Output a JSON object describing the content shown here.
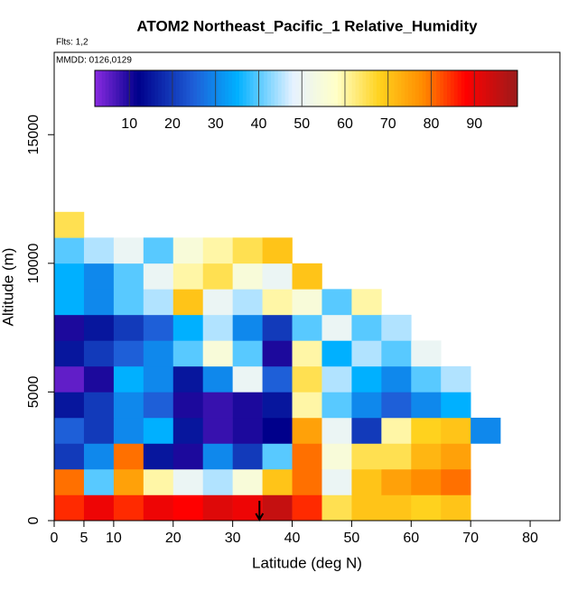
{
  "chart_data": {
    "type": "heatmap",
    "title": "ATOM2 Northeast_Pacific_1 Relative_Humidity",
    "annotations": [
      "Flts: 1,2",
      "MMDD: 0126,0129"
    ],
    "x_label": "Latitude (deg N)",
    "y_label": "Altitude (m)",
    "xlim": [
      0,
      85
    ],
    "xticks": [
      0,
      5,
      10,
      20,
      30,
      40,
      50,
      60,
      70,
      80
    ],
    "ylim": [
      0,
      18200
    ],
    "yticks": [
      0,
      5000,
      10000,
      15000
    ],
    "x_bins": [
      0,
      5,
      10,
      15,
      20,
      25,
      30,
      35,
      40,
      45,
      50,
      55,
      60,
      65,
      70,
      75
    ],
    "y_bins": [
      0,
      1000,
      2000,
      3000,
      4000,
      5000,
      6000,
      7000,
      8000,
      9000,
      10000,
      11000,
      12000
    ],
    "values": [
      [
        85,
        90,
        85,
        90,
        88,
        92,
        90,
        95,
        85,
        65,
        70,
        70,
        68,
        70,
        null
      ],
      [
        80,
        40,
        75,
        60,
        50,
        45,
        55,
        70,
        80,
        50,
        70,
        75,
        78,
        80,
        null
      ],
      [
        20,
        30,
        80,
        15,
        10,
        30,
        20,
        40,
        80,
        55,
        65,
        65,
        72,
        75,
        null
      ],
      [
        25,
        20,
        30,
        35,
        15,
        8,
        10,
        12,
        75,
        50,
        20,
        60,
        68,
        70,
        30
      ],
      [
        15,
        20,
        30,
        25,
        10,
        8,
        10,
        15,
        60,
        40,
        30,
        25,
        30,
        35,
        null
      ],
      [
        5,
        10,
        35,
        30,
        15,
        30,
        50,
        25,
        65,
        45,
        35,
        30,
        40,
        45,
        null
      ],
      [
        15,
        20,
        25,
        30,
        40,
        55,
        40,
        10,
        60,
        35,
        45,
        40,
        50,
        null,
        null
      ],
      [
        10,
        15,
        20,
        25,
        35,
        45,
        30,
        20,
        40,
        50,
        40,
        45,
        null,
        null,
        null
      ],
      [
        35,
        30,
        40,
        45,
        70,
        50,
        45,
        60,
        55,
        40,
        60,
        null,
        null,
        null,
        null
      ],
      [
        35,
        30,
        40,
        50,
        60,
        65,
        55,
        50,
        70,
        null,
        null,
        null,
        null,
        null,
        null
      ],
      [
        40,
        45,
        50,
        40,
        55,
        60,
        65,
        70,
        null,
        null,
        null,
        null,
        null,
        null,
        null
      ],
      [
        65,
        null,
        null,
        null,
        null,
        null,
        null,
        null,
        null,
        null,
        null,
        null,
        null,
        null,
        null
      ]
    ],
    "colorbar_lim": [
      2,
      100
    ],
    "colorbar_ticks": [
      10,
      20,
      30,
      40,
      50,
      60,
      70,
      80,
      90
    ],
    "colorscale": [
      [
        2,
        "#8a2be2"
      ],
      [
        12,
        "#00008b"
      ],
      [
        25,
        "#1e5fd8"
      ],
      [
        35,
        "#00b0ff"
      ],
      [
        48,
        "#e6f2ff"
      ],
      [
        58,
        "#ffffc8"
      ],
      [
        68,
        "#ffd21e"
      ],
      [
        78,
        "#ff8c00"
      ],
      [
        88,
        "#ff0000"
      ],
      [
        100,
        "#9b1b1b"
      ]
    ],
    "marker_lat": 34.5
  }
}
